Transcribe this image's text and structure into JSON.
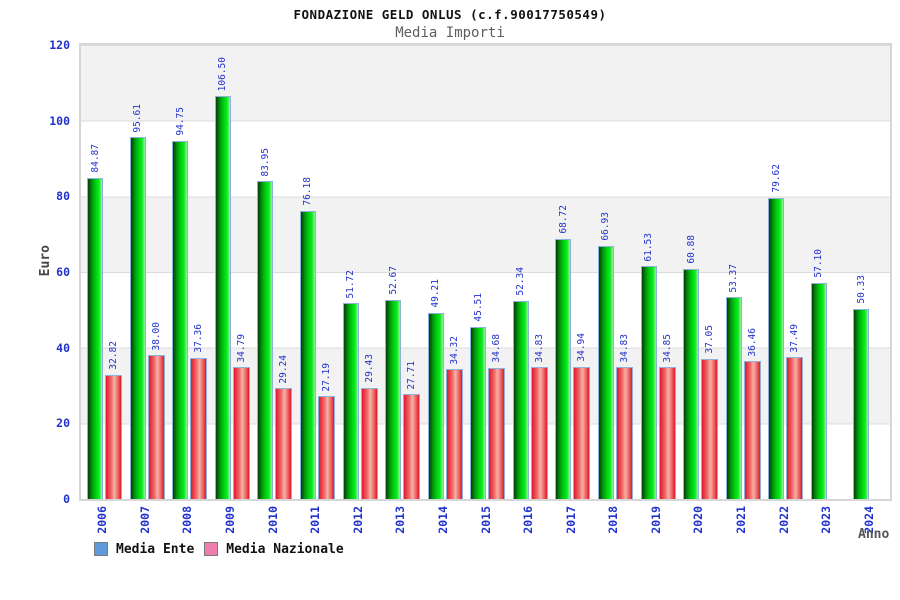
{
  "header": {
    "title": "FONDAZIONE GELD ONLUS (c.f.90017750549)",
    "subtitle": "Media Importi"
  },
  "axes": {
    "y_title": "Euro",
    "x_title": "Anno",
    "tick_color": "#2233cc"
  },
  "legend": {
    "items": [
      {
        "label": "Media Ente",
        "swatch_color": "#5f9bd8"
      },
      {
        "label": "Media Nazionale",
        "swatch_color": "#ee7fae"
      }
    ]
  },
  "chart_data": {
    "type": "bar",
    "title": "FONDAZIONE GELD ONLUS (c.f.90017750549)",
    "subtitle": "Media Importi",
    "xlabel": "Anno",
    "ylabel": "Euro",
    "ylim": [
      0,
      120
    ],
    "yticks": [
      0,
      20,
      40,
      60,
      80,
      100,
      120
    ],
    "grid": "horizontal-bands",
    "band_colors": [
      "#f2f2f2",
      "#ffffff"
    ],
    "legend_position": "bottom",
    "value_label_color": "#2233cc",
    "categories": [
      "2006",
      "2007",
      "2008",
      "2009",
      "2010",
      "2011",
      "2012",
      "2013",
      "2014",
      "2015",
      "2016",
      "2017",
      "2018",
      "2019",
      "2020",
      "2021",
      "2022",
      "2023",
      "2024"
    ],
    "series": [
      {
        "name": "Media Ente",
        "bar_color": "green",
        "values": [
          84.87,
          95.61,
          94.75,
          106.5,
          83.95,
          76.18,
          51.72,
          52.67,
          49.21,
          45.51,
          52.34,
          68.72,
          66.93,
          61.53,
          60.88,
          53.37,
          79.62,
          57.1,
          50.33
        ]
      },
      {
        "name": "Media Nazionale",
        "bar_color": "red",
        "values": [
          32.82,
          38.0,
          37.36,
          34.79,
          29.24,
          27.19,
          29.43,
          27.71,
          34.32,
          34.68,
          34.83,
          34.94,
          34.83,
          34.85,
          37.05,
          36.46,
          37.49,
          null,
          null
        ]
      }
    ]
  }
}
